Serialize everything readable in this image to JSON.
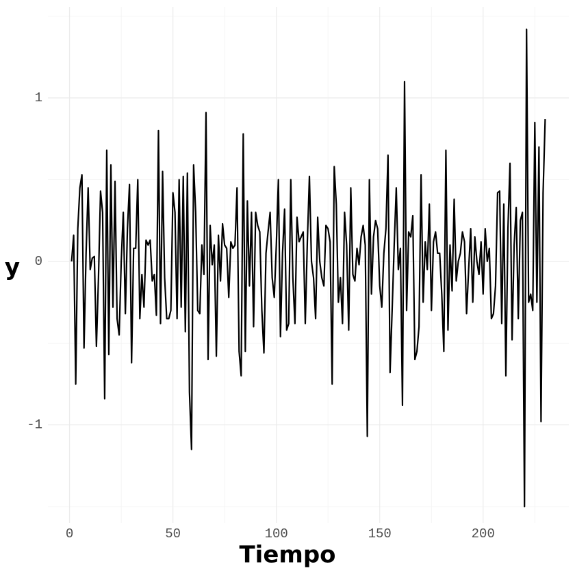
{
  "chart_data": {
    "type": "line",
    "x_label": "Tiempo",
    "y_label": "y",
    "xlim": [
      -10.45,
      241.45
    ],
    "xticks": [
      0,
      50,
      100,
      150,
      200
    ],
    "xminor": [
      25,
      75,
      125,
      175,
      225
    ],
    "ylim": [
      -1.6,
      1.557
    ],
    "yticks": [
      -1,
      0,
      1
    ],
    "yminor": [
      -1.5,
      -0.5,
      0.5,
      1.5
    ],
    "grid": true,
    "x": [
      1,
      2,
      3,
      4,
      5,
      6,
      7,
      8,
      9,
      10,
      11,
      12,
      13,
      14,
      15,
      16,
      17,
      18,
      19,
      20,
      21,
      22,
      23,
      24,
      25,
      26,
      27,
      28,
      29,
      30,
      31,
      32,
      33,
      34,
      35,
      36,
      37,
      38,
      39,
      40,
      41,
      42,
      43,
      44,
      45,
      46,
      47,
      48,
      49,
      50,
      51,
      52,
      53,
      54,
      55,
      56,
      57,
      58,
      59,
      60,
      61,
      62,
      63,
      64,
      65,
      66,
      67,
      68,
      69,
      70,
      71,
      72,
      73,
      74,
      75,
      76,
      77,
      78,
      79,
      80,
      81,
      82,
      83,
      84,
      85,
      86,
      87,
      88,
      89,
      90,
      91,
      92,
      93,
      94,
      95,
      96,
      97,
      98,
      99,
      100,
      101,
      102,
      103,
      104,
      105,
      106,
      107,
      108,
      109,
      110,
      111,
      112,
      113,
      114,
      115,
      116,
      117,
      118,
      119,
      120,
      121,
      122,
      123,
      124,
      125,
      126,
      127,
      128,
      129,
      130,
      131,
      132,
      133,
      134,
      135,
      136,
      137,
      138,
      139,
      140,
      141,
      142,
      143,
      144,
      145,
      146,
      147,
      148,
      149,
      150,
      151,
      152,
      153,
      154,
      155,
      156,
      157,
      158,
      159,
      160,
      161,
      162,
      163,
      164,
      165,
      166,
      167,
      168,
      169,
      170,
      171,
      172,
      173,
      174,
      175,
      176,
      177,
      178,
      179,
      180,
      181,
      182,
      183,
      184,
      185,
      186,
      187,
      188,
      189,
      190,
      191,
      192,
      193,
      194,
      195,
      196,
      197,
      198,
      199,
      200,
      201,
      202,
      203,
      204,
      205,
      206,
      207,
      208,
      209,
      210,
      211,
      212,
      213,
      214,
      215,
      216,
      217,
      218,
      219,
      220,
      221,
      222,
      223,
      224,
      225,
      226,
      227,
      228,
      229,
      230
    ],
    "series": [
      {
        "color": "#000000",
        "values": [
          0,
          0.16,
          -0.75,
          0.2,
          0.45,
          0.53,
          -0.53,
          0.05,
          0.45,
          -0.05,
          0.02,
          0.03,
          -0.52,
          -0.1,
          0.43,
          0.3,
          -0.84,
          0.68,
          -0.57,
          0.59,
          -0.28,
          0.49,
          -0.35,
          -0.45,
          0,
          0.3,
          -0.32,
          0.2,
          0.47,
          -0.62,
          0.08,
          0.08,
          0.5,
          -0.35,
          -0.08,
          -0.28,
          0.13,
          0.1,
          0.13,
          -0.12,
          -0.08,
          -0.33,
          0.8,
          -0.38,
          0.55,
          -0.1,
          -0.35,
          -0.35,
          -0.3,
          0.42,
          0.3,
          -0.35,
          0.5,
          -0.28,
          0.52,
          -0.43,
          0.54,
          -0.8,
          -1.15,
          0.59,
          0.3,
          -0.3,
          -0.32,
          0.1,
          -0.08,
          0.91,
          -0.6,
          0.22,
          -0.02,
          0.1,
          -0.58,
          0.16,
          -0.12,
          0.23,
          0.1,
          0.08,
          -0.22,
          0.12,
          0.08,
          0.1,
          0.45,
          -0.55,
          -0.7,
          0.78,
          -0.55,
          0.37,
          -0.15,
          0.3,
          -0.4,
          0.3,
          0.22,
          0.18,
          -0.3,
          -0.56,
          0.05,
          0.18,
          0.3,
          -0.1,
          -0.22,
          0.1,
          0.5,
          -0.46,
          0.05,
          0.32,
          -0.42,
          -0.38,
          0.5,
          -0.1,
          -0.38,
          0.27,
          0.12,
          0.15,
          0.18,
          -0.38,
          0.12,
          0.52,
          0,
          -0.1,
          -0.35,
          0.27,
          0,
          -0.1,
          -0.15,
          0.22,
          0.2,
          0.12,
          -0.75,
          0.58,
          0.35,
          -0.25,
          -0.1,
          -0.38,
          0.3,
          0.1,
          -0.42,
          0.45,
          -0.08,
          -0.12,
          0.08,
          -0.02,
          0.15,
          0.22,
          0.1,
          -1.07,
          0.5,
          -0.2,
          0.15,
          0.25,
          0.2,
          -0.15,
          -0.28,
          0.05,
          0.2,
          0.65,
          -0.68,
          -0.3,
          0.1,
          0.45,
          -0.05,
          0.08,
          -0.88,
          1.1,
          -0.3,
          0.18,
          0.15,
          0.28,
          -0.6,
          -0.55,
          -0.4,
          0.53,
          -0.25,
          0.12,
          -0.05,
          0.35,
          -0.3,
          0.12,
          0.18,
          0.05,
          0.05,
          -0.2,
          -0.55,
          0.68,
          -0.42,
          0.1,
          -0.18,
          0.38,
          -0.12,
          0,
          0.05,
          0.18,
          0.12,
          -0.32,
          -0.05,
          0.2,
          -0.25,
          0.15,
          0,
          -0.08,
          0.12,
          -0.2,
          0.2,
          0,
          0.08,
          -0.35,
          -0.32,
          -0.15,
          0.42,
          0.43,
          -0.38,
          0.35,
          -0.7,
          0.2,
          0.6,
          -0.48,
          0.1,
          0.33,
          -0.35,
          0.25,
          0.3,
          -1.5,
          1.42,
          -0.25,
          -0.2,
          -0.3,
          0.85,
          -0.25,
          0.7,
          -0.98,
          0.42,
          0.87
        ]
      }
    ]
  }
}
